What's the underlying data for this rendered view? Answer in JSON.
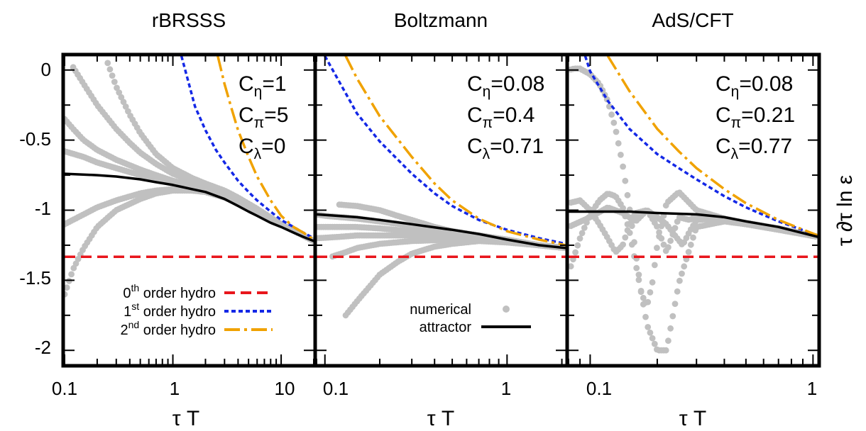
{
  "chart_data": [
    {
      "type": "line",
      "title": "rBRSSS",
      "xlabel": "τ T",
      "ylabel": "",
      "xscale": "log",
      "xlim": [
        0.1,
        20
      ],
      "ylim": [
        -2.1,
        0.1
      ],
      "xticks": [
        0.1,
        1,
        10
      ],
      "xtick_labels": [
        "0.1",
        "1",
        "10"
      ],
      "yticks": [
        0,
        -0.5,
        -1,
        -1.5,
        -2
      ],
      "ytick_labels": [
        "0",
        "-0.5",
        "-1",
        "-1.5",
        "-2"
      ],
      "params": [
        {
          "sym": "C",
          "sub": "η",
          "text": "=1"
        },
        {
          "sym": "C",
          "sub": "π",
          "text": "=5"
        },
        {
          "sym": "C",
          "sub": "λ",
          "text": "=0"
        }
      ],
      "legend": {
        "position": "bottom-left",
        "entries": [
          {
            "pre": "0",
            "sup": "th",
            "post": " order hydro",
            "series": "zeroth"
          },
          {
            "pre": "1",
            "sup": "st",
            "post": " order hydro",
            "series": "first"
          },
          {
            "pre": "2",
            "sup": "nd",
            "post": " order hydro",
            "series": "second"
          }
        ]
      },
      "series": [
        {
          "key": "zeroth",
          "x": [
            0.1,
            20
          ],
          "y": [
            -1.333,
            -1.333
          ]
        },
        {
          "key": "first",
          "x": [
            1.2,
            1.6,
            2,
            2.5,
            3,
            4,
            5,
            6,
            8,
            10,
            13,
            16,
            20
          ],
          "y": [
            0.1,
            -0.26,
            -0.43,
            -0.57,
            -0.66,
            -0.79,
            -0.87,
            -0.93,
            -1.01,
            -1.07,
            -1.12,
            -1.16,
            -1.2
          ]
        },
        {
          "key": "second",
          "x": [
            2.6,
            3,
            3.5,
            4,
            5,
            6,
            8,
            10,
            13,
            16,
            20
          ],
          "y": [
            0.1,
            -0.1,
            -0.28,
            -0.43,
            -0.62,
            -0.76,
            -0.93,
            -1.04,
            -1.12,
            -1.16,
            -1.21
          ]
        },
        {
          "key": "attractor",
          "x": [
            0.1,
            0.2,
            0.3,
            0.5,
            0.7,
            1,
            1.5,
            2,
            3,
            4,
            5,
            6,
            8,
            10,
            13,
            16,
            20
          ],
          "y": [
            -0.74,
            -0.75,
            -0.76,
            -0.78,
            -0.8,
            -0.82,
            -0.85,
            -0.87,
            -0.92,
            -0.97,
            -1.01,
            -1.04,
            -1.09,
            -1.12,
            -1.16,
            -1.19,
            -1.22
          ]
        },
        {
          "key": "numerical",
          "curves": [
            {
              "x": [
                0.25,
                0.3,
                0.4,
                0.5,
                0.7,
                1,
                1.5,
                2,
                3,
                4,
                6,
                10,
                20
              ],
              "y": [
                0.05,
                -0.12,
                -0.32,
                -0.45,
                -0.6,
                -0.7,
                -0.77,
                -0.81,
                -0.86,
                -0.91,
                -0.99,
                -1.1,
                -1.22
              ]
            },
            {
              "x": [
                0.12,
                0.15,
                0.2,
                0.3,
                0.4,
                0.5,
                0.7,
                1,
                1.5,
                2,
                3,
                4,
                6,
                10,
                20
              ],
              "y": [
                0.02,
                -0.1,
                -0.25,
                -0.42,
                -0.52,
                -0.59,
                -0.67,
                -0.74,
                -0.79,
                -0.82,
                -0.87,
                -0.92,
                -1.0,
                -1.1,
                -1.22
              ]
            },
            {
              "x": [
                0.1,
                0.12,
                0.15,
                0.2,
                0.3,
                0.5,
                0.7,
                1,
                1.5,
                2,
                3,
                4,
                6,
                10,
                20
              ],
              "y": [
                -0.35,
                -0.42,
                -0.5,
                -0.57,
                -0.64,
                -0.71,
                -0.75,
                -0.79,
                -0.82,
                -0.84,
                -0.88,
                -0.93,
                -1.0,
                -1.1,
                -1.22
              ]
            },
            {
              "x": [
                0.1,
                0.15,
                0.2,
                0.3,
                0.5,
                0.7,
                1,
                1.5,
                2,
                3,
                4,
                6,
                10,
                20
              ],
              "y": [
                -0.58,
                -0.62,
                -0.66,
                -0.7,
                -0.75,
                -0.78,
                -0.81,
                -0.83,
                -0.85,
                -0.89,
                -0.93,
                -1.0,
                -1.1,
                -1.22
              ]
            },
            {
              "x": [
                0.1,
                0.15,
                0.2,
                0.3,
                0.5,
                0.7,
                1,
                1.5,
                2,
                3,
                4,
                6,
                10,
                20
              ],
              "y": [
                -1.1,
                -1.03,
                -0.98,
                -0.93,
                -0.88,
                -0.86,
                -0.85,
                -0.85,
                -0.86,
                -0.9,
                -0.94,
                -1.01,
                -1.1,
                -1.22
              ]
            },
            {
              "x": [
                0.1,
                0.12,
                0.15,
                0.2,
                0.3,
                0.5,
                0.7,
                1,
                1.5,
                2,
                3,
                4,
                6,
                10,
                20
              ],
              "y": [
                -1.6,
                -1.42,
                -1.27,
                -1.12,
                -1.0,
                -0.92,
                -0.88,
                -0.86,
                -0.86,
                -0.87,
                -0.91,
                -0.95,
                -1.01,
                -1.1,
                -1.22
              ]
            }
          ]
        }
      ]
    },
    {
      "type": "line",
      "title": "Boltzmann",
      "xlabel": "τ T",
      "ylabel": "",
      "xscale": "log",
      "xlim": [
        0.09,
        2.1
      ],
      "ylim": [
        -2.1,
        0.1
      ],
      "xticks": [
        0.1,
        1
      ],
      "xtick_labels": [
        "0.1",
        "1"
      ],
      "params": [
        {
          "sym": "C",
          "sub": "η",
          "text": "=0.08"
        },
        {
          "sym": "C",
          "sub": "π",
          "text": "=0.4"
        },
        {
          "sym": "C",
          "sub": "λ",
          "text": "=0.71"
        }
      ],
      "legend": {
        "position": "bottom-center",
        "entries": [
          {
            "text": "numerical",
            "series": "numerical"
          },
          {
            "text": "attractor",
            "series": "attractor"
          }
        ]
      },
      "series": [
        {
          "key": "zeroth",
          "x": [
            0.09,
            2.1
          ],
          "y": [
            -1.333,
            -1.333
          ]
        },
        {
          "key": "first",
          "x": [
            0.1,
            0.15,
            0.2,
            0.3,
            0.4,
            0.5,
            0.7,
            1,
            1.5,
            2.1
          ],
          "y": [
            0.1,
            -0.31,
            -0.51,
            -0.74,
            -0.88,
            -0.97,
            -1.07,
            -1.14,
            -1.2,
            -1.24
          ]
        },
        {
          "key": "second",
          "x": [
            0.13,
            0.15,
            0.2,
            0.3,
            0.4,
            0.5,
            0.7,
            1,
            1.5,
            2.1
          ],
          "y": [
            0.1,
            -0.06,
            -0.33,
            -0.62,
            -0.81,
            -0.93,
            -1.06,
            -1.15,
            -1.21,
            -1.25
          ]
        },
        {
          "key": "attractor",
          "x": [
            0.09,
            0.15,
            0.2,
            0.3,
            0.5,
            0.7,
            1,
            1.5,
            2.1
          ],
          "y": [
            -1.03,
            -1.05,
            -1.07,
            -1.1,
            -1.14,
            -1.17,
            -1.21,
            -1.25,
            -1.27
          ]
        },
        {
          "key": "numerical",
          "curves": [
            {
              "x": [
                0.09,
                0.1,
                0.15,
                0.2,
                0.3,
                0.5,
                0.7,
                1,
                1.5,
                2.1
              ],
              "y": [
                -1.03,
                -1.04,
                -1.06,
                -1.08,
                -1.11,
                -1.15,
                -1.18,
                -1.21,
                -1.25,
                -1.27
              ]
            },
            {
              "x": [
                0.12,
                0.15,
                0.2,
                0.25,
                0.3,
                0.4,
                0.5,
                0.7,
                1,
                1.5,
                2.1
              ],
              "y": [
                -0.96,
                -0.97,
                -1.0,
                -1.04,
                -1.07,
                -1.12,
                -1.15,
                -1.18,
                -1.21,
                -1.25,
                -1.27
              ]
            },
            {
              "x": [
                0.09,
                0.12,
                0.15,
                0.2,
                0.3,
                0.5,
                0.7,
                1,
                1.5,
                2.1
              ],
              "y": [
                -1.12,
                -1.12,
                -1.12,
                -1.13,
                -1.15,
                -1.17,
                -1.19,
                -1.22,
                -1.25,
                -1.27
              ]
            },
            {
              "x": [
                0.09,
                0.12,
                0.15,
                0.2,
                0.3,
                0.5,
                0.7,
                1,
                1.5,
                2.1
              ],
              "y": [
                -1.2,
                -1.19,
                -1.18,
                -1.18,
                -1.18,
                -1.19,
                -1.2,
                -1.22,
                -1.25,
                -1.27
              ]
            },
            {
              "x": [
                0.11,
                0.13,
                0.15,
                0.2,
                0.3,
                0.5,
                0.7,
                1,
                1.5,
                2.1
              ],
              "y": [
                -1.33,
                -1.3,
                -1.27,
                -1.24,
                -1.22,
                -1.21,
                -1.21,
                -1.23,
                -1.25,
                -1.27
              ]
            },
            {
              "x": [
                0.13,
                0.15,
                0.18,
                0.2,
                0.25,
                0.3,
                0.4,
                0.5,
                0.7,
                1,
                1.5,
                2.1
              ],
              "y": [
                -1.75,
                -1.65,
                -1.53,
                -1.46,
                -1.37,
                -1.31,
                -1.26,
                -1.24,
                -1.22,
                -1.23,
                -1.25,
                -1.27
              ]
            }
          ]
        }
      ]
    },
    {
      "type": "line",
      "title": "AdS/CFT",
      "xlabel": "τ T",
      "ylabel": "τ ∂τ ln ε",
      "xscale": "log",
      "xlim": [
        0.08,
        1.05
      ],
      "ylim": [
        -2.1,
        0.1
      ],
      "xticks": [
        0.1,
        1
      ],
      "xtick_labels": [
        "0.1",
        "1"
      ],
      "params": [
        {
          "sym": "C",
          "sub": "η",
          "text": "=0.08"
        },
        {
          "sym": "C",
          "sub": "π",
          "text": "=0.21"
        },
        {
          "sym": "C",
          "sub": "λ",
          "text": "=0.77"
        }
      ],
      "series": [
        {
          "key": "zeroth",
          "x": [
            0.08,
            1.05
          ],
          "y": [
            -1.333,
            -1.333
          ]
        },
        {
          "key": "first",
          "x": [
            0.095,
            0.1,
            0.12,
            0.15,
            0.2,
            0.25,
            0.3,
            0.4,
            0.5,
            0.7,
            1.05
          ],
          "y": [
            0.1,
            -0.01,
            -0.22,
            -0.42,
            -0.6,
            -0.7,
            -0.78,
            -0.9,
            -0.98,
            -1.08,
            -1.18
          ]
        },
        {
          "key": "second",
          "x": [
            0.12,
            0.15,
            0.2,
            0.25,
            0.3,
            0.4,
            0.5,
            0.7,
            1.05
          ],
          "y": [
            0.1,
            -0.15,
            -0.42,
            -0.58,
            -0.7,
            -0.85,
            -0.95,
            -1.07,
            -1.18
          ]
        },
        {
          "key": "attractor",
          "x": [
            0.08,
            0.1,
            0.15,
            0.2,
            0.3,
            0.4,
            0.5,
            0.7,
            1.05
          ],
          "y": [
            -1.01,
            -1.01,
            -1.01,
            -1.02,
            -1.03,
            -1.05,
            -1.08,
            -1.12,
            -1.19
          ]
        },
        {
          "key": "numerical",
          "curves": [
            {
              "x": [
                0.08,
                0.085,
                0.09,
                0.1,
                0.11,
                0.12,
                0.13,
                0.14,
                0.15,
                0.16,
                0.17,
                0.18,
                0.2,
                0.22,
                0.25,
                0.3,
                0.4,
                0.5,
                0.7,
                1.05
              ],
              "y": [
                0.0,
                0.01,
                0.01,
                -0.03,
                -0.1,
                -0.22,
                -0.42,
                -0.68,
                -0.98,
                -1.3,
                -1.6,
                -1.82,
                -2.0,
                -2.0,
                -1.52,
                -1.12,
                -1.08,
                -1.1,
                -1.14,
                -1.19
              ]
            },
            {
              "x": [
                0.08,
                0.09,
                0.1,
                0.11,
                0.12,
                0.13,
                0.14,
                0.15,
                0.16,
                0.17,
                0.18,
                0.19,
                0.2,
                0.22,
                0.25,
                0.3,
                0.4,
                0.5,
                0.7,
                1.05
              ],
              "y": [
                -1.45,
                -1.2,
                -1.03,
                -0.93,
                -0.88,
                -0.9,
                -0.98,
                -1.15,
                -1.38,
                -1.6,
                -1.68,
                -1.52,
                -1.25,
                -0.95,
                -0.87,
                -1.0,
                -1.06,
                -1.09,
                -1.13,
                -1.19
              ]
            },
            {
              "x": [
                0.08,
                0.09,
                0.1,
                0.11,
                0.12,
                0.13,
                0.14,
                0.15,
                0.16,
                0.18,
                0.2,
                0.22,
                0.24,
                0.26,
                0.28,
                0.3,
                0.35,
                0.4,
                0.5,
                0.7,
                1.05
              ],
              "y": [
                -0.95,
                -0.93,
                -1.0,
                -1.1,
                -1.2,
                -1.3,
                -1.25,
                -1.1,
                -1.02,
                -1.0,
                -1.05,
                -1.1,
                -1.18,
                -1.25,
                -1.15,
                -1.07,
                -1.06,
                -1.07,
                -1.1,
                -1.13,
                -1.19
              ]
            },
            {
              "x": [
                0.08,
                0.1,
                0.12,
                0.14,
                0.16,
                0.18,
                0.2,
                0.22,
                0.25,
                0.28,
                0.3,
                0.35,
                0.4,
                0.5,
                0.7,
                1.05
              ],
              "y": [
                -1.12,
                -1.05,
                -0.98,
                -1.02,
                -1.08,
                -1.0,
                -1.12,
                -1.3,
                -1.05,
                -1.07,
                -1.04,
                -1.06,
                -1.07,
                -1.1,
                -1.13,
                -1.19
              ]
            }
          ]
        }
      ]
    }
  ],
  "colors": {
    "zeroth": "#e8161c",
    "first": "#1428e6",
    "second": "#f0a200",
    "attractor": "#000000",
    "numerical": "#c0c0c0",
    "frame": "#000000"
  }
}
